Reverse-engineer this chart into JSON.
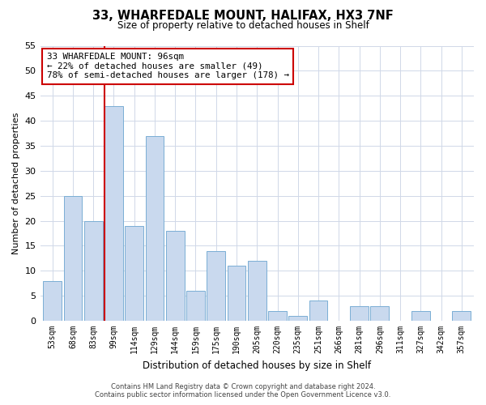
{
  "title": "33, WHARFEDALE MOUNT, HALIFAX, HX3 7NF",
  "subtitle": "Size of property relative to detached houses in Shelf",
  "xlabel": "Distribution of detached houses by size in Shelf",
  "ylabel": "Number of detached properties",
  "bar_labels": [
    "53sqm",
    "68sqm",
    "83sqm",
    "99sqm",
    "114sqm",
    "129sqm",
    "144sqm",
    "159sqm",
    "175sqm",
    "190sqm",
    "205sqm",
    "220sqm",
    "235sqm",
    "251sqm",
    "266sqm",
    "281sqm",
    "296sqm",
    "311sqm",
    "327sqm",
    "342sqm",
    "357sqm"
  ],
  "bar_values": [
    8,
    25,
    20,
    43,
    19,
    37,
    18,
    6,
    14,
    11,
    12,
    2,
    1,
    4,
    0,
    3,
    3,
    0,
    2,
    0,
    2
  ],
  "bar_color": "#c9d9ee",
  "bar_edge_color": "#7aaed4",
  "ylim": [
    0,
    55
  ],
  "yticks": [
    0,
    5,
    10,
    15,
    20,
    25,
    30,
    35,
    40,
    45,
    50,
    55
  ],
  "vline_index": 3,
  "annotation_title": "33 WHARFEDALE MOUNT: 96sqm",
  "annotation_line1": "← 22% of detached houses are smaller (49)",
  "annotation_line2": "78% of semi-detached houses are larger (178) →",
  "footer1": "Contains HM Land Registry data © Crown copyright and database right 2024.",
  "footer2": "Contains public sector information licensed under the Open Government Licence v3.0.",
  "background_color": "#ffffff",
  "grid_color": "#d0d8e8",
  "vline_color": "#cc0000",
  "annotation_box_color": "#cc0000"
}
